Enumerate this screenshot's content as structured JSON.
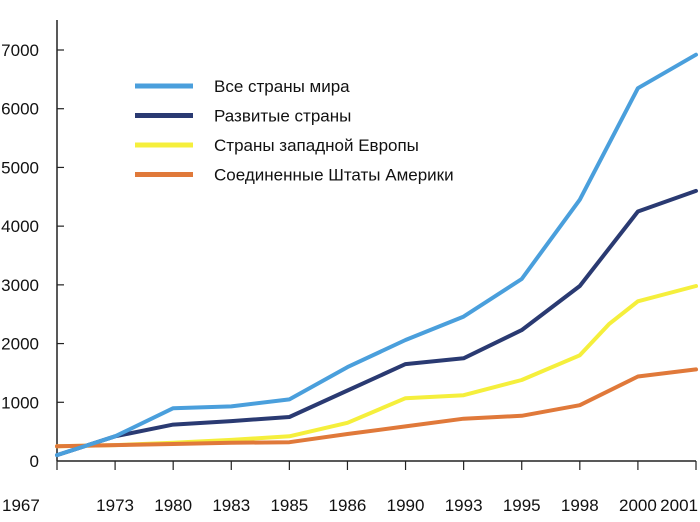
{
  "chart_data": {
    "type": "line",
    "title": "",
    "xlabel": "",
    "ylabel": "",
    "categories": [
      "1967",
      "1973",
      "1980",
      "1983",
      "1985",
      "1986",
      "1990",
      "1993",
      "1995",
      "1998",
      "2000",
      "2001"
    ],
    "ylim": [
      0,
      7000
    ],
    "yticks": [
      0,
      1000,
      2000,
      3000,
      4000,
      5000,
      6000,
      7000
    ],
    "grid": false,
    "legend_position": "top-left",
    "series": [
      {
        "name": "Все страны мира",
        "color": "#4a9fdc",
        "points": [
          {
            "x": 1967,
            "y": 100
          },
          {
            "x": 1973,
            "y": 420
          },
          {
            "x": 1980,
            "y": 900
          },
          {
            "x": 1983,
            "y": 930
          },
          {
            "x": 1985,
            "y": 1050
          },
          {
            "x": 1986,
            "y": 1600
          },
          {
            "x": 1990,
            "y": 2060
          },
          {
            "x": 1993,
            "y": 2460
          },
          {
            "x": 1995,
            "y": 3100
          },
          {
            "x": 1998,
            "y": 4450
          },
          {
            "x": 2000,
            "y": 6350
          },
          {
            "x": 2001,
            "y": 6920
          }
        ]
      },
      {
        "name": "Развитые страны",
        "color": "#2a3a72",
        "points": [
          {
            "x": 1967,
            "y": 100
          },
          {
            "x": 1973,
            "y": 420
          },
          {
            "x": 1980,
            "y": 620
          },
          {
            "x": 1983,
            "y": 680
          },
          {
            "x": 1985,
            "y": 750
          },
          {
            "x": 1986,
            "y": 1200
          },
          {
            "x": 1990,
            "y": 1650
          },
          {
            "x": 1993,
            "y": 1750
          },
          {
            "x": 1995,
            "y": 2230
          },
          {
            "x": 1998,
            "y": 2980
          },
          {
            "x": 2000,
            "y": 4250
          },
          {
            "x": 2001,
            "y": 4600
          }
        ]
      },
      {
        "name": "Страны западной Европы",
        "color": "#f5ef3c",
        "points": [
          {
            "x": 1967,
            "y": 250
          },
          {
            "x": 1973,
            "y": 270
          },
          {
            "x": 1980,
            "y": 310
          },
          {
            "x": 1983,
            "y": 360
          },
          {
            "x": 1985,
            "y": 420
          },
          {
            "x": 1986,
            "y": 650
          },
          {
            "x": 1990,
            "y": 1070
          },
          {
            "x": 1993,
            "y": 1120
          },
          {
            "x": 1995,
            "y": 1380
          },
          {
            "x": 1998,
            "y": 1800
          },
          {
            "x": 1999,
            "y": 2330
          },
          {
            "x": 2000,
            "y": 2720
          },
          {
            "x": 2001,
            "y": 2980
          }
        ]
      },
      {
        "name": "Соединенные Штаты Америки",
        "color": "#e0793a",
        "points": [
          {
            "x": 1967,
            "y": 250
          },
          {
            "x": 1973,
            "y": 270
          },
          {
            "x": 1980,
            "y": 290
          },
          {
            "x": 1983,
            "y": 310
          },
          {
            "x": 1985,
            "y": 320
          },
          {
            "x": 1986,
            "y": 460
          },
          {
            "x": 1990,
            "y": 590
          },
          {
            "x": 1993,
            "y": 720
          },
          {
            "x": 1995,
            "y": 770
          },
          {
            "x": 1998,
            "y": 950
          },
          {
            "x": 2000,
            "y": 1440
          },
          {
            "x": 2001,
            "y": 1560
          }
        ]
      }
    ]
  }
}
